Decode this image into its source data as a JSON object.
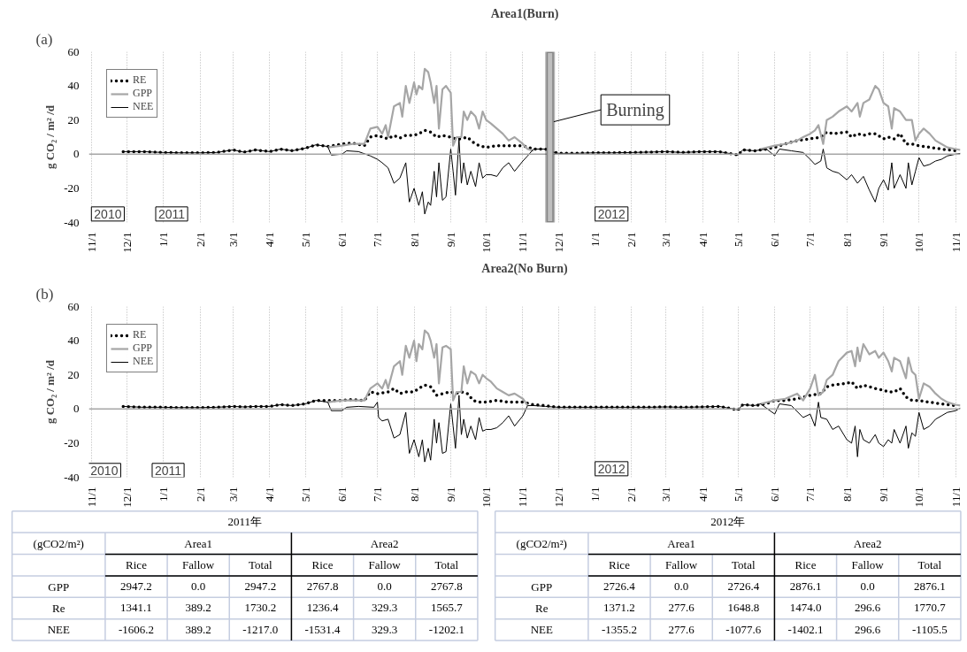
{
  "chart_data": [
    {
      "type": "line",
      "title": "Area1(Burn)",
      "ylabel": "g CO₂ / m² /d",
      "xlim": [
        "2010-10-30",
        "2012-11-05"
      ],
      "ylim": [
        -40,
        60
      ],
      "yticks": [
        -40,
        -20,
        0,
        20,
        40,
        60
      ],
      "xticks": [
        {
          "value": "2010-11-01",
          "label": "11/1"
        },
        {
          "value": "2010-12-01",
          "label": "12/1"
        },
        {
          "value": "2011-01-01",
          "label": "1/1"
        },
        {
          "value": "2011-02-01",
          "label": "2/1"
        },
        {
          "value": "2011-03-01",
          "label": "3/1"
        },
        {
          "value": "2011-04-01",
          "label": "4/1"
        },
        {
          "value": "2011-05-01",
          "label": "5/1"
        },
        {
          "value": "2011-06-01",
          "label": "6/1"
        },
        {
          "value": "2011-07-01",
          "label": "7/1"
        },
        {
          "value": "2011-08-01",
          "label": "8/1"
        },
        {
          "value": "2011-09-01",
          "label": "9/1"
        },
        {
          "value": "2011-10-01",
          "label": "10/1"
        },
        {
          "value": "2011-11-01",
          "label": "11/1"
        },
        {
          "value": "2011-12-01",
          "label": "12/1"
        },
        {
          "value": "2012-01-01",
          "label": "1/1"
        },
        {
          "value": "2012-02-01",
          "label": "2/1"
        },
        {
          "value": "2012-03-01",
          "label": "3/1"
        },
        {
          "value": "2012-04-01",
          "label": "4/1"
        },
        {
          "value": "2012-05-01",
          "label": "5/1"
        },
        {
          "value": "2012-06-01",
          "label": "6/1"
        },
        {
          "value": "2012-07-01",
          "label": "7/1"
        },
        {
          "value": "2012-08-01",
          "label": "8/1"
        },
        {
          "value": "2012-09-01",
          "label": "9/1"
        },
        {
          "value": "2012-10-01",
          "label": "10/1"
        },
        {
          "value": "2012-11-01",
          "label": "11/1"
        }
      ],
      "grid": "x",
      "legend": "top left",
      "ref_lines": [
        {
          "axis": "y",
          "value": 0,
          "color": "#a6a6a6"
        }
      ],
      "bands": [
        {
          "axis": "x",
          "from": "2011-11-21",
          "to": "2011-11-27",
          "color": "#bfbfbf"
        }
      ],
      "annotations": [
        "(a)",
        {
          "text": "2010",
          "x": "2010-11-15",
          "y": -35
        },
        {
          "text": "2011",
          "x": "2011-01-08",
          "y": -35
        },
        {
          "text": "2012",
          "x": "2012-01-15",
          "y": -35
        },
        {
          "text": "Burning",
          "x": "2011-11-24",
          "y": 19
        }
      ],
      "series": [
        {
          "name": "RE",
          "type": "line",
          "line_style": "dotted",
          "color": "#000000",
          "x": [
            "2010-11-28",
            "2010-12-15",
            "2011-01-01",
            "2011-01-15",
            "2011-02-01",
            "2011-02-15",
            "2011-03-01",
            "2011-03-10",
            "2011-03-20",
            "2011-04-01",
            "2011-04-10",
            "2011-04-20",
            "2011-05-01",
            "2011-05-10",
            "2011-05-20",
            "2011-06-01",
            "2011-06-10",
            "2011-06-20",
            "2011-06-25",
            "2011-07-01",
            "2011-07-10",
            "2011-07-15",
            "2011-07-20",
            "2011-07-25",
            "2011-08-01",
            "2011-08-05",
            "2011-08-10",
            "2011-08-15",
            "2011-08-20",
            "2011-08-25",
            "2011-09-01",
            "2011-09-05",
            "2011-09-10",
            "2011-09-15",
            "2011-09-20",
            "2011-09-25",
            "2011-10-01",
            "2011-10-10",
            "2011-10-20",
            "2011-11-01",
            "2011-11-10",
            "2011-11-20",
            "2011-12-01",
            "2011-12-15",
            "2012-01-01",
            "2012-01-15",
            "2012-02-01",
            "2012-02-15",
            "2012-03-01",
            "2012-03-15",
            "2012-04-01",
            "2012-04-15",
            "2012-05-01",
            "2012-05-05",
            "2012-05-15",
            "2012-05-25",
            "2012-06-01",
            "2012-06-10",
            "2012-06-20",
            "2012-07-01",
            "2012-07-10",
            "2012-07-15",
            "2012-07-20",
            "2012-08-01",
            "2012-08-05",
            "2012-08-10",
            "2012-08-15",
            "2012-08-20",
            "2012-08-25",
            "2012-09-01",
            "2012-09-05",
            "2012-09-10",
            "2012-09-15",
            "2012-09-20",
            "2012-09-25",
            "2012-10-01",
            "2012-10-10",
            "2012-10-20",
            "2012-11-01"
          ],
          "values": [
            1.5,
            1.5,
            1,
            0.8,
            0.8,
            1,
            2.5,
            1.2,
            2.5,
            1.5,
            3,
            2,
            3.5,
            5.5,
            4.5,
            6,
            6.5,
            5,
            10,
            11,
            9,
            11,
            9.5,
            11,
            11,
            12,
            14,
            13,
            10,
            11,
            10,
            9,
            9,
            10,
            7,
            5,
            4,
            5,
            5,
            5,
            3,
            3,
            0.5,
            0.5,
            0.8,
            0.8,
            1,
            1.2,
            1.5,
            1,
            1.5,
            1.5,
            -0.5,
            2.5,
            2,
            3,
            4,
            6,
            8,
            9,
            10,
            13,
            12,
            13,
            10,
            12,
            11,
            12,
            12,
            9,
            10,
            9,
            12,
            6,
            6,
            5,
            4,
            3,
            2
          ]
        },
        {
          "name": "GPP",
          "type": "line",
          "color": "#a6a6a6",
          "x": [
            "2011-05-20",
            "2011-06-01",
            "2011-06-10",
            "2011-06-20",
            "2011-06-25",
            "2011-07-01",
            "2011-07-05",
            "2011-07-08",
            "2011-07-10",
            "2011-07-15",
            "2011-07-20",
            "2011-07-22",
            "2011-07-25",
            "2011-07-28",
            "2011-08-01",
            "2011-08-03",
            "2011-08-05",
            "2011-08-08",
            "2011-08-10",
            "2011-08-13",
            "2011-08-15",
            "2011-08-18",
            "2011-08-20",
            "2011-08-22",
            "2011-08-25",
            "2011-08-28",
            "2011-09-01",
            "2011-09-03",
            "2011-09-06",
            "2011-09-10",
            "2011-09-12",
            "2011-09-15",
            "2011-09-18",
            "2011-09-22",
            "2011-09-25",
            "2011-09-28",
            "2011-10-01",
            "2011-10-05",
            "2011-10-10",
            "2011-10-15",
            "2011-10-20",
            "2011-10-25",
            "2011-11-01",
            "2011-11-05",
            "2011-11-10",
            "2012-01-01",
            "2012-05-20",
            "2012-06-01",
            "2012-06-10",
            "2012-06-20",
            "2012-06-25",
            "2012-07-01",
            "2012-07-05",
            "2012-07-08",
            "2012-07-12",
            "2012-07-15",
            "2012-07-20",
            "2012-07-25",
            "2012-08-01",
            "2012-08-05",
            "2012-08-10",
            "2012-08-12",
            "2012-08-15",
            "2012-08-20",
            "2012-08-25",
            "2012-08-28",
            "2012-09-01",
            "2012-09-05",
            "2012-09-08",
            "2012-09-10",
            "2012-09-15",
            "2012-09-20",
            "2012-09-25",
            "2012-09-28",
            "2012-10-01",
            "2012-10-05",
            "2012-10-10",
            "2012-10-15",
            "2012-10-20",
            "2012-10-25",
            "2012-11-01",
            "2012-11-05"
          ],
          "values": [
            4,
            5,
            6,
            6,
            15,
            16,
            12,
            17,
            10,
            28,
            30,
            22,
            40,
            30,
            42,
            35,
            40,
            38,
            50,
            48,
            42,
            30,
            40,
            15,
            38,
            40,
            36,
            5,
            10,
            10,
            25,
            20,
            25,
            22,
            15,
            25,
            20,
            18,
            15,
            12,
            8,
            10,
            6,
            3,
            2,
            null,
            3,
            5,
            6,
            8,
            10,
            12,
            14,
            17,
            6,
            20,
            22,
            25,
            28,
            25,
            30,
            22,
            30,
            32,
            40,
            38,
            30,
            28,
            15,
            27,
            25,
            20,
            20,
            8,
            12,
            15,
            12,
            8,
            6,
            4,
            3,
            2.5
          ]
        },
        {
          "name": "NEE",
          "type": "line",
          "color": "#000000",
          "x": [
            "2010-11-28",
            "2010-12-15",
            "2011-01-01",
            "2011-01-15",
            "2011-02-01",
            "2011-02-15",
            "2011-03-01",
            "2011-03-10",
            "2011-03-20",
            "2011-04-01",
            "2011-04-10",
            "2011-04-20",
            "2011-05-01",
            "2011-05-10",
            "2011-05-20",
            "2011-05-23",
            "2011-06-01",
            "2011-06-05",
            "2011-06-15",
            "2011-06-25",
            "2011-07-01",
            "2011-07-05",
            "2011-07-10",
            "2011-07-15",
            "2011-07-20",
            "2011-07-25",
            "2011-07-28",
            "2011-08-01",
            "2011-08-05",
            "2011-08-08",
            "2011-08-10",
            "2011-08-13",
            "2011-08-15",
            "2011-08-18",
            "2011-08-20",
            "2011-08-22",
            "2011-08-25",
            "2011-08-28",
            "2011-09-01",
            "2011-09-03",
            "2011-09-05",
            "2011-09-08",
            "2011-09-10",
            "2011-09-12",
            "2011-09-15",
            "2011-09-18",
            "2011-09-22",
            "2011-09-25",
            "2011-09-28",
            "2011-10-01",
            "2011-10-05",
            "2011-10-10",
            "2011-10-15",
            "2011-10-20",
            "2011-10-25",
            "2011-11-01",
            "2011-11-05",
            "2011-11-10",
            "2011-11-20",
            "2011-11-25",
            "2011-12-01",
            "2011-12-15",
            "2012-01-01",
            "2012-01-15",
            "2012-02-01",
            "2012-02-15",
            "2012-03-01",
            "2012-03-15",
            "2012-04-01",
            "2012-04-15",
            "2012-05-01",
            "2012-05-05",
            "2012-05-15",
            "2012-05-25",
            "2012-06-01",
            "2012-06-05",
            "2012-06-15",
            "2012-06-25",
            "2012-07-01",
            "2012-07-05",
            "2012-07-10",
            "2012-07-12",
            "2012-07-15",
            "2012-07-20",
            "2012-07-25",
            "2012-08-01",
            "2012-08-05",
            "2012-08-10",
            "2012-08-15",
            "2012-08-20",
            "2012-08-25",
            "2012-08-28",
            "2012-09-01",
            "2012-09-05",
            "2012-09-08",
            "2012-09-10",
            "2012-09-15",
            "2012-09-20",
            "2012-09-22",
            "2012-09-25",
            "2012-09-28",
            "2012-10-01",
            "2012-10-05",
            "2012-10-10",
            "2012-10-15",
            "2012-10-20",
            "2012-10-25",
            "2012-11-01",
            "2012-11-05"
          ],
          "values": [
            1.5,
            1.5,
            1,
            0.8,
            0.8,
            1,
            2.5,
            1.2,
            2.5,
            1.5,
            3,
            2,
            3.5,
            5.5,
            4.5,
            -0.5,
            0,
            2,
            1.5,
            -1,
            -3,
            -5,
            -8,
            -17,
            -14,
            -5,
            -28,
            -20,
            -30,
            -22,
            -35,
            -28,
            -30,
            -10,
            -25,
            -5,
            -27,
            -25,
            3,
            -10,
            -24,
            9,
            -17,
            -5,
            -18,
            -10,
            -19,
            -5,
            -14,
            -12,
            -12,
            -13,
            -8,
            -5,
            -10,
            -4,
            -1,
            3,
            3,
            1.5,
            0.5,
            0.5,
            0.8,
            0.8,
            1,
            1.2,
            1.5,
            1,
            1.5,
            1.5,
            -0.5,
            2.5,
            2,
            3,
            -1,
            3,
            2,
            1,
            -3,
            -6,
            -4,
            3,
            -8,
            -10,
            -11,
            -15,
            -12,
            -17,
            -13,
            -21,
            -28,
            -20,
            -15,
            -21,
            -5,
            -20,
            -12,
            -20,
            -5,
            -18,
            -10,
            -2,
            -7,
            -6,
            -4,
            -3,
            -1,
            0,
            0.5
          ]
        }
      ]
    },
    {
      "type": "line",
      "title": "Area2(No Burn)",
      "ylabel": "g CO₂ / m² /d",
      "xlim": [
        "2010-10-30",
        "2012-11-05"
      ],
      "ylim": [
        -40,
        60
      ],
      "yticks": [
        -40,
        -20,
        0,
        20,
        40,
        60
      ],
      "xticks": [
        {
          "value": "2010-11-01",
          "label": "11/1"
        },
        {
          "value": "2010-12-01",
          "label": "12/1"
        },
        {
          "value": "2011-01-01",
          "label": "1/1"
        },
        {
          "value": "2011-02-01",
          "label": "2/1"
        },
        {
          "value": "2011-03-01",
          "label": "3/1"
        },
        {
          "value": "2011-04-01",
          "label": "4/1"
        },
        {
          "value": "2011-05-01",
          "label": "5/1"
        },
        {
          "value": "2011-06-01",
          "label": "6/1"
        },
        {
          "value": "2011-07-01",
          "label": "7/1"
        },
        {
          "value": "2011-08-01",
          "label": "8/1"
        },
        {
          "value": "2011-09-01",
          "label": "9/1"
        },
        {
          "value": "2011-10-01",
          "label": "10/1"
        },
        {
          "value": "2011-11-01",
          "label": "11/1"
        },
        {
          "value": "2011-12-01",
          "label": "12/1"
        },
        {
          "value": "2012-01-01",
          "label": "1/1"
        },
        {
          "value": "2012-02-01",
          "label": "2/1"
        },
        {
          "value": "2012-03-01",
          "label": "3/1"
        },
        {
          "value": "2012-04-01",
          "label": "4/1"
        },
        {
          "value": "2012-05-01",
          "label": "5/1"
        },
        {
          "value": "2012-06-01",
          "label": "6/1"
        },
        {
          "value": "2012-07-01",
          "label": "7/1"
        },
        {
          "value": "2012-08-01",
          "label": "8/1"
        },
        {
          "value": "2012-09-01",
          "label": "9/1"
        },
        {
          "value": "2012-10-01",
          "label": "10/1"
        },
        {
          "value": "2012-11-01",
          "label": "11/1"
        }
      ],
      "grid": "x",
      "legend": "top left",
      "ref_lines": [
        {
          "axis": "y",
          "value": 0,
          "color": "#a6a6a6"
        }
      ],
      "annotations": [
        "(b)",
        {
          "text": "2010",
          "x": "2010-11-12",
          "y": -36
        },
        {
          "text": "2011",
          "x": "2011-01-05",
          "y": -36
        },
        {
          "text": "2012",
          "x": "2012-01-15",
          "y": -35
        }
      ],
      "series": [
        {
          "name": "RE",
          "type": "line",
          "line_style": "dotted",
          "color": "#000000",
          "x": [
            "2010-11-28",
            "2010-12-15",
            "2011-01-01",
            "2011-01-15",
            "2011-02-01",
            "2011-02-15",
            "2011-03-01",
            "2011-03-10",
            "2011-03-20",
            "2011-04-01",
            "2011-04-10",
            "2011-04-20",
            "2011-05-01",
            "2011-05-10",
            "2011-05-20",
            "2011-06-01",
            "2011-06-10",
            "2011-06-20",
            "2011-06-25",
            "2011-07-01",
            "2011-07-10",
            "2011-07-15",
            "2011-07-20",
            "2011-07-25",
            "2011-08-01",
            "2011-08-05",
            "2011-08-10",
            "2011-08-15",
            "2011-08-20",
            "2011-08-25",
            "2011-09-01",
            "2011-09-05",
            "2011-09-10",
            "2011-09-15",
            "2011-09-20",
            "2011-09-25",
            "2011-10-01",
            "2011-10-10",
            "2011-10-20",
            "2011-11-01",
            "2011-11-10",
            "2011-11-20",
            "2011-11-25",
            "2011-12-01",
            "2011-12-15",
            "2012-01-01",
            "2012-01-15",
            "2012-02-01",
            "2012-02-15",
            "2012-03-01",
            "2012-03-15",
            "2012-04-01",
            "2012-04-15",
            "2012-05-01",
            "2012-05-05",
            "2012-05-15",
            "2012-05-25",
            "2012-06-01",
            "2012-06-10",
            "2012-06-20",
            "2012-07-01",
            "2012-07-10",
            "2012-07-15",
            "2012-07-20",
            "2012-08-01",
            "2012-08-05",
            "2012-08-10",
            "2012-08-15",
            "2012-08-20",
            "2012-08-25",
            "2012-09-01",
            "2012-09-05",
            "2012-09-10",
            "2012-09-15",
            "2012-09-20",
            "2012-09-25",
            "2012-10-01",
            "2012-10-10",
            "2012-10-20",
            "2012-11-01"
          ],
          "values": [
            1.5,
            1,
            1,
            0.8,
            0.8,
            1,
            1.5,
            1.2,
            1.5,
            1.5,
            2.5,
            2,
            3,
            5,
            5,
            5,
            5.5,
            5,
            10,
            9,
            10,
            12,
            9,
            10,
            10,
            12,
            14,
            13,
            8,
            9,
            10,
            9,
            10,
            9,
            5,
            4,
            4,
            5,
            4,
            4,
            2.5,
            2,
            1.5,
            1,
            1,
            1,
            1,
            1,
            1,
            1.2,
            1,
            1.2,
            1.5,
            -0.5,
            2.5,
            2,
            3,
            5,
            5,
            6,
            8,
            9,
            13,
            14,
            15,
            16,
            12,
            14,
            13,
            12,
            11,
            10,
            10,
            12,
            7,
            5,
            5,
            4,
            3,
            2
          ]
        },
        {
          "name": "GPP",
          "type": "line",
          "color": "#a6a6a6",
          "x": [
            "2011-05-20",
            "2011-06-01",
            "2011-06-10",
            "2011-06-20",
            "2011-06-25",
            "2011-07-01",
            "2011-07-05",
            "2011-07-08",
            "2011-07-10",
            "2011-07-15",
            "2011-07-20",
            "2011-07-22",
            "2011-07-25",
            "2011-07-28",
            "2011-08-01",
            "2011-08-03",
            "2011-08-05",
            "2011-08-08",
            "2011-08-10",
            "2011-08-13",
            "2011-08-15",
            "2011-08-18",
            "2011-08-20",
            "2011-08-22",
            "2011-08-25",
            "2011-08-28",
            "2011-09-01",
            "2011-09-03",
            "2011-09-06",
            "2011-09-10",
            "2011-09-12",
            "2011-09-15",
            "2011-09-18",
            "2011-09-22",
            "2011-09-25",
            "2011-09-28",
            "2011-10-01",
            "2011-10-05",
            "2011-10-10",
            "2011-10-15",
            "2011-10-20",
            "2011-10-25",
            "2011-11-01",
            "2011-11-05",
            "2012-01-01",
            "2012-05-20",
            "2012-06-01",
            "2012-06-10",
            "2012-06-20",
            "2012-06-25",
            "2012-07-01",
            "2012-07-05",
            "2012-07-08",
            "2012-07-12",
            "2012-07-15",
            "2012-07-20",
            "2012-07-25",
            "2012-08-01",
            "2012-08-05",
            "2012-08-08",
            "2012-08-10",
            "2012-08-12",
            "2012-08-15",
            "2012-08-20",
            "2012-08-25",
            "2012-08-28",
            "2012-09-01",
            "2012-09-05",
            "2012-09-08",
            "2012-09-10",
            "2012-09-15",
            "2012-09-20",
            "2012-09-22",
            "2012-09-25",
            "2012-09-28",
            "2012-10-01",
            "2012-10-05",
            "2012-10-10",
            "2012-10-15",
            "2012-10-20",
            "2012-10-25",
            "2012-11-01",
            "2012-11-05"
          ],
          "values": [
            4,
            5,
            5,
            5,
            12,
            15,
            12,
            17,
            12,
            25,
            28,
            20,
            37,
            30,
            40,
            28,
            38,
            35,
            46,
            44,
            40,
            30,
            38,
            15,
            36,
            37,
            35,
            5,
            10,
            10,
            25,
            15,
            22,
            20,
            15,
            20,
            18,
            16,
            12,
            10,
            8,
            9,
            6,
            2,
            null,
            3,
            5,
            6,
            9,
            5,
            12,
            20,
            8,
            10,
            17,
            20,
            28,
            33,
            34,
            25,
            36,
            28,
            38,
            32,
            34,
            30,
            33,
            28,
            22,
            30,
            28,
            18,
            30,
            22,
            20,
            6,
            15,
            13,
            9,
            6,
            4,
            2.5,
            2
          ]
        },
        {
          "name": "NEE",
          "type": "line",
          "color": "#000000",
          "x": [
            "2010-11-28",
            "2010-12-15",
            "2011-01-01",
            "2011-01-15",
            "2011-02-01",
            "2011-02-15",
            "2011-03-01",
            "2011-03-10",
            "2011-03-20",
            "2011-04-01",
            "2011-04-10",
            "2011-04-20",
            "2011-05-01",
            "2011-05-10",
            "2011-05-20",
            "2011-05-23",
            "2011-06-01",
            "2011-06-05",
            "2011-06-15",
            "2011-06-28",
            "2011-07-01",
            "2011-07-02",
            "2011-07-05",
            "2011-07-10",
            "2011-07-15",
            "2011-07-20",
            "2011-07-25",
            "2011-07-28",
            "2011-08-01",
            "2011-08-05",
            "2011-08-08",
            "2011-08-10",
            "2011-08-13",
            "2011-08-15",
            "2011-08-18",
            "2011-08-20",
            "2011-08-22",
            "2011-08-25",
            "2011-08-28",
            "2011-09-01",
            "2011-09-03",
            "2011-09-05",
            "2011-09-08",
            "2011-09-10",
            "2011-09-12",
            "2011-09-15",
            "2011-09-18",
            "2011-09-22",
            "2011-09-25",
            "2011-09-28",
            "2011-10-01",
            "2011-10-05",
            "2011-10-10",
            "2011-10-15",
            "2011-10-20",
            "2011-10-25",
            "2011-11-01",
            "2011-11-05",
            "2011-11-10",
            "2011-11-20",
            "2011-12-01",
            "2011-12-15",
            "2012-01-01",
            "2012-01-15",
            "2012-02-01",
            "2012-02-15",
            "2012-03-01",
            "2012-03-15",
            "2012-04-01",
            "2012-04-15",
            "2012-05-01",
            "2012-05-05",
            "2012-05-15",
            "2012-05-20",
            "2012-06-01",
            "2012-06-05",
            "2012-06-15",
            "2012-06-25",
            "2012-07-01",
            "2012-07-05",
            "2012-07-08",
            "2012-07-10",
            "2012-07-15",
            "2012-07-20",
            "2012-07-25",
            "2012-08-01",
            "2012-08-05",
            "2012-08-08",
            "2012-08-10",
            "2012-08-12",
            "2012-08-15",
            "2012-08-20",
            "2012-08-25",
            "2012-08-28",
            "2012-09-01",
            "2012-09-05",
            "2012-09-08",
            "2012-09-10",
            "2012-09-15",
            "2012-09-20",
            "2012-09-22",
            "2012-09-25",
            "2012-09-28",
            "2012-10-01",
            "2012-10-05",
            "2012-10-10",
            "2012-10-15",
            "2012-10-20",
            "2012-10-25",
            "2012-11-01",
            "2012-11-05"
          ],
          "values": [
            1.5,
            1,
            1,
            0.8,
            0.8,
            1,
            1.5,
            1.2,
            1.5,
            1.5,
            2.5,
            2,
            3,
            5,
            4,
            -1,
            -1,
            1,
            1.5,
            1,
            4,
            -5,
            -7,
            -6,
            -17,
            -15,
            -2,
            -26,
            -18,
            -28,
            -18,
            -31,
            -23,
            -30,
            -6,
            -20,
            -8,
            -26,
            -25,
            3,
            -10,
            -23,
            8,
            -15,
            -6,
            -17,
            -10,
            -18,
            -5,
            -13,
            -12,
            -12,
            -11,
            -8,
            -4,
            -10,
            -4,
            2,
            2,
            1.5,
            1,
            1,
            1,
            1,
            1,
            1,
            1.2,
            1,
            1.2,
            1.5,
            -0.5,
            2.5,
            2,
            3,
            -3,
            3,
            2,
            -5,
            -3,
            -10,
            4,
            -5,
            -6,
            -12,
            -10,
            -18,
            -20,
            -10,
            -28,
            -12,
            -18,
            -20,
            -15,
            -20,
            -22,
            -18,
            -20,
            -12,
            -20,
            -10,
            -23,
            -14,
            -16,
            -2,
            -12,
            -10,
            -6,
            -4,
            -2,
            -1,
            0.5
          ]
        }
      ]
    },
    {
      "type": "other",
      "title": "2011年",
      "annotations": [
        "(gCO2/m²)",
        "Area1",
        "Area2",
        "Rice",
        "Fallow",
        "Total",
        "Rice",
        "Fallow",
        "Total",
        "GPP",
        "2947.2",
        "0.0",
        "2947.2",
        "2767.8",
        "0.0",
        "2767.8",
        "Re",
        "1341.1",
        "389.2",
        "1730.2",
        "1236.4",
        "329.3",
        "1565.7",
        "NEE",
        "-1606.2",
        "389.2",
        "-1217.0",
        "-1531.4",
        "329.3",
        "-1202.1"
      ]
    },
    {
      "type": "other",
      "title": "2012年",
      "annotations": [
        "(gCO2/m²)",
        "Area1",
        "Area2",
        "Rice",
        "Fallow",
        "Total",
        "Rice",
        "Fallow",
        "Total",
        "GPP",
        "2726.4",
        "0.0",
        "2726.4",
        "2876.1",
        "0.0",
        "2876.1",
        "Re",
        "1371.2",
        "277.6",
        "1648.8",
        "1474.0",
        "296.6",
        "1770.7",
        "NEE",
        "-1355.2",
        "277.6",
        "-1077.6",
        "-1402.1",
        "296.6",
        "-1105.5"
      ]
    }
  ]
}
